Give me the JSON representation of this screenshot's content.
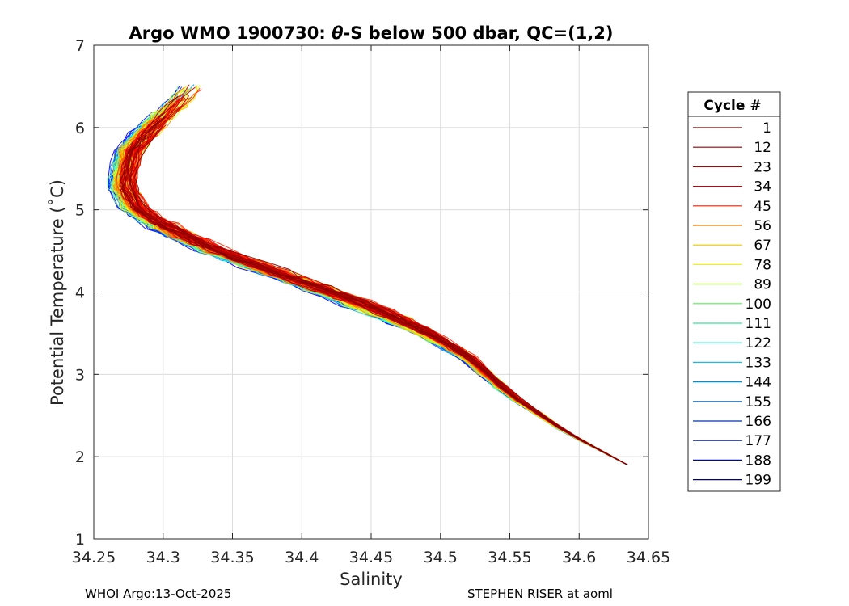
{
  "chart_data": {
    "type": "line",
    "title_prefix": "Argo WMO 1900730: ",
    "title_theta": "θ",
    "title_suffix": "-S below 500 dbar,  QC=(1,2)",
    "xlabel": "Salinity",
    "ylabel": "Potential Temperature (˚C)",
    "xlim": [
      34.25,
      34.65
    ],
    "ylim": [
      1,
      7
    ],
    "xticks": [
      34.25,
      34.3,
      34.35,
      34.4,
      34.45,
      34.5,
      34.55,
      34.6,
      34.65
    ],
    "xtick_labels": [
      "34.25",
      "34.3",
      "34.35",
      "34.4",
      "34.45",
      "34.5",
      "34.55",
      "34.6",
      "34.65"
    ],
    "yticks": [
      1,
      2,
      3,
      4,
      5,
      6,
      7
    ],
    "ytick_labels": [
      "1",
      "2",
      "3",
      "4",
      "5",
      "6",
      "7"
    ],
    "grid": true,
    "legend": {
      "title": "Cycle #",
      "placement": "right",
      "entries": [
        {
          "label": "1",
          "color": "#800000"
        },
        {
          "label": "12",
          "color": "#990000"
        },
        {
          "label": "23",
          "color": "#b30000"
        },
        {
          "label": "34",
          "color": "#cc0000"
        },
        {
          "label": "45",
          "color": "#e62200"
        },
        {
          "label": "56",
          "color": "#f07800"
        },
        {
          "label": "67",
          "color": "#e6c800"
        },
        {
          "label": "78",
          "color": "#f0f020"
        },
        {
          "label": "89",
          "color": "#a0f030"
        },
        {
          "label": "100",
          "color": "#50f050"
        },
        {
          "label": "111",
          "color": "#30e890"
        },
        {
          "label": "122",
          "color": "#20d8c8"
        },
        {
          "label": "133",
          "color": "#10c0e8"
        },
        {
          "label": "144",
          "color": "#0090d8"
        },
        {
          "label": "155",
          "color": "#0060c8"
        },
        {
          "label": "166",
          "color": "#0030b0"
        },
        {
          "label": "177",
          "color": "#001a98"
        },
        {
          "label": "188",
          "color": "#000c88"
        },
        {
          "label": "199",
          "color": "#000070"
        }
      ]
    },
    "mean_profile": {
      "salinity": [
        34.635,
        34.59,
        34.55,
        34.52,
        34.49,
        34.45,
        34.41,
        34.37,
        34.33,
        34.3,
        34.28,
        34.27,
        34.275,
        34.29,
        34.31,
        34.325
      ],
      "theta": [
        1.9,
        2.3,
        2.75,
        3.2,
        3.5,
        3.8,
        4.05,
        4.3,
        4.55,
        4.8,
        5.0,
        5.3,
        5.7,
        6.0,
        6.3,
        6.6
      ]
    },
    "n_profiles": 199
  },
  "footer": {
    "left": "WHOI Argo:13-Oct-2025",
    "right": "STEPHEN RISER at aoml"
  }
}
